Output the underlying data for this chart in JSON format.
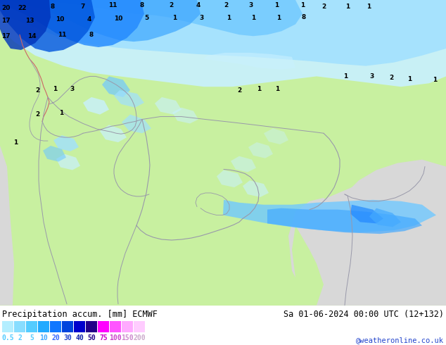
{
  "title_left": "Precipitation accum. [mm] ECMWF",
  "title_right": "Sa 01-06-2024 00:00 UTC (12+132)",
  "credit": "@weatheronline.co.uk",
  "colorbar_values": [
    "0.5",
    "2",
    "5",
    "10",
    "20",
    "30",
    "40",
    "50",
    "75",
    "100",
    "150",
    "200"
  ],
  "colorbar_colors": [
    "#b3eeff",
    "#88ddff",
    "#55ccff",
    "#22aaff",
    "#1177ff",
    "#0044dd",
    "#0000cc",
    "#220088",
    "#ff00ff",
    "#ff55ff",
    "#ffaaff",
    "#ffccff"
  ],
  "colorbar_text_colors": [
    "#55ccff",
    "#55ccff",
    "#55ccff",
    "#44aaff",
    "#3366ff",
    "#2244cc",
    "#1122aa",
    "#220088",
    "#cc00cc",
    "#cc44cc",
    "#cc88cc",
    "#ccaacc"
  ],
  "bg_color": "#ffffff",
  "land_green": "#c8f0a0",
  "land_green2": "#b8e890",
  "sea_gray": "#d8d8d8",
  "precip_light1": "#c8f0ff",
  "precip_light2": "#a0e0ff",
  "precip_mid1": "#70c8ff",
  "precip_mid2": "#44aaff",
  "precip_heavy1": "#2288ff",
  "precip_heavy2": "#0055dd",
  "precip_vheavy": "#0033bb",
  "border_color": "#9999aa",
  "red_border": "#cc6666",
  "fig_width": 6.34,
  "fig_height": 4.9,
  "dpi": 100,
  "numbers": [
    [
      8,
      12,
      "20"
    ],
    [
      32,
      12,
      "22"
    ],
    [
      75,
      10,
      "8"
    ],
    [
      118,
      10,
      "7"
    ],
    [
      160,
      8,
      "11"
    ],
    [
      202,
      8,
      "8"
    ],
    [
      243,
      8,
      "2"
    ],
    [
      282,
      8,
      "4"
    ],
    [
      321,
      8,
      "2"
    ],
    [
      356,
      8,
      "3"
    ],
    [
      393,
      8,
      "1"
    ],
    [
      430,
      8,
      "1"
    ],
    [
      460,
      10,
      "2"
    ],
    [
      494,
      10,
      "1"
    ],
    [
      524,
      10,
      "1"
    ],
    [
      8,
      30,
      "17"
    ],
    [
      42,
      30,
      "13"
    ],
    [
      85,
      28,
      "10"
    ],
    [
      127,
      28,
      "4"
    ],
    [
      168,
      27,
      "10"
    ],
    [
      208,
      26,
      "5"
    ],
    [
      248,
      26,
      "1"
    ],
    [
      287,
      26,
      "3"
    ],
    [
      325,
      26,
      "1"
    ],
    [
      360,
      26,
      "1"
    ],
    [
      396,
      26,
      "1"
    ],
    [
      432,
      25,
      "8"
    ],
    [
      8,
      52,
      "17"
    ],
    [
      45,
      52,
      "14"
    ],
    [
      88,
      50,
      "11"
    ],
    [
      130,
      50,
      "8"
    ],
    [
      53,
      130,
      "2"
    ],
    [
      78,
      128,
      "1"
    ],
    [
      103,
      128,
      "3"
    ],
    [
      53,
      165,
      "2"
    ],
    [
      87,
      163,
      "1"
    ],
    [
      22,
      205,
      "1"
    ],
    [
      340,
      130,
      "2"
    ],
    [
      368,
      128,
      "1"
    ],
    [
      394,
      128,
      "1"
    ],
    [
      491,
      110,
      "1"
    ],
    [
      528,
      110,
      "3"
    ],
    [
      556,
      112,
      "2"
    ],
    [
      582,
      114,
      "1"
    ],
    [
      618,
      115,
      "1"
    ]
  ]
}
